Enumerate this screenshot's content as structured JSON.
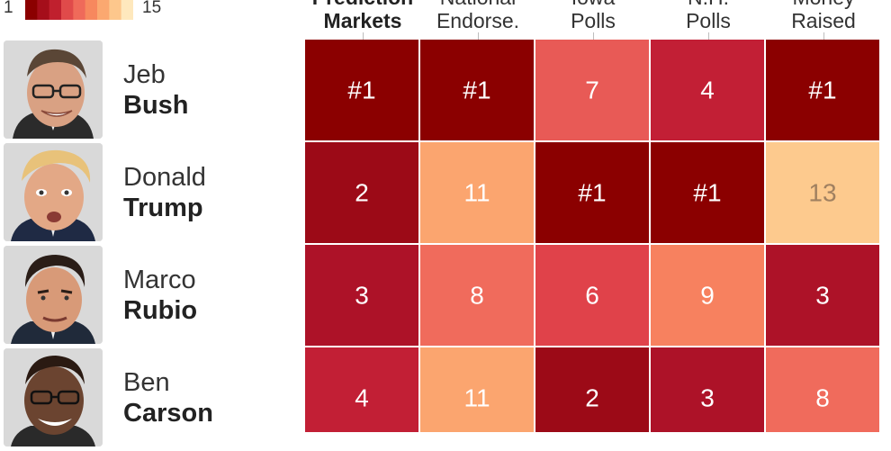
{
  "legend": {
    "min_label": "1",
    "max_label": "15",
    "colors": [
      "#8b0000",
      "#a50e1a",
      "#c0202e",
      "#e04a4a",
      "#ef6a5a",
      "#f7885e",
      "#fba870",
      "#fdc78c",
      "#fee8bd"
    ]
  },
  "chart_data": {
    "type": "heatmap",
    "columns": [
      {
        "line1": "Prediction",
        "line2": "Markets",
        "bold": true
      },
      {
        "line1": "National",
        "line2": "Endorse.",
        "bold": false
      },
      {
        "line1": "Iowa",
        "line2": "Polls",
        "bold": false
      },
      {
        "line1": "N.H.",
        "line2": "Polls",
        "bold": false
      },
      {
        "line1": "Money",
        "line2": "Raised",
        "bold": false
      }
    ],
    "rows": [
      {
        "first": "Jeb",
        "last": "Bush",
        "values": [
          1,
          1,
          7,
          4,
          1
        ],
        "labels": [
          "#1",
          "#1",
          "7",
          "4",
          "#1"
        ]
      },
      {
        "first": "Donald",
        "last": "Trump",
        "values": [
          2,
          11,
          1,
          1,
          13
        ],
        "labels": [
          "2",
          "11",
          "#1",
          "#1",
          "13"
        ]
      },
      {
        "first": "Marco",
        "last": "Rubio",
        "values": [
          3,
          8,
          6,
          9,
          3
        ],
        "labels": [
          "3",
          "8",
          "6",
          "9",
          "3"
        ]
      },
      {
        "first": "Ben",
        "last": "Carson",
        "values": [
          4,
          11,
          2,
          3,
          8
        ],
        "labels": [
          "4",
          "11",
          "2",
          "3",
          "8"
        ]
      }
    ],
    "scale": {
      "min": 1,
      "max": 15
    },
    "colors": {
      "1": "#8b0000",
      "2": "#9c0a17",
      "3": "#ad1228",
      "4": "#c21f35",
      "6": "#e0424a",
      "7": "#e85a56",
      "8": "#f06b5c",
      "9": "#f7815f",
      "11": "#fba56f",
      "13": "#fdca8e"
    },
    "text_colors": {
      "light": "#ffffff",
      "muted": "#a08060"
    }
  }
}
